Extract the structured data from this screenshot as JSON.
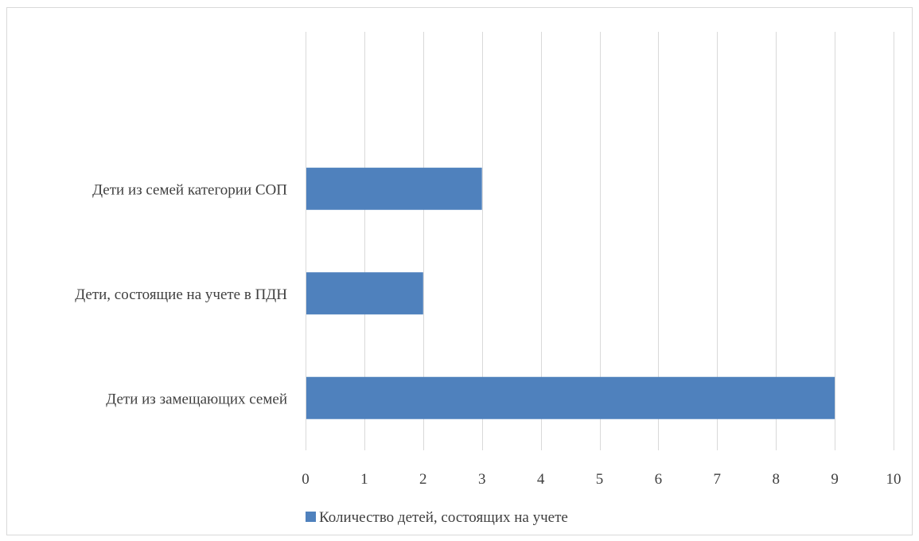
{
  "chart_data": {
    "type": "bar",
    "orientation": "horizontal",
    "categories": [
      "Дети из семей категории СОП",
      "Дети, состоящие на учете в ПДН",
      "Дети из замещающих семей"
    ],
    "series": [
      {
        "name": "Количество детей, состоящих на учете",
        "values": [
          3,
          2,
          9
        ],
        "color": "#4f81bd"
      }
    ],
    "xticks": [
      "0",
      "1",
      "2",
      "3",
      "4",
      "5",
      "6",
      "7",
      "8",
      "9",
      "10"
    ],
    "xlim": [
      0,
      10
    ],
    "grid": "vertical",
    "legend_position": "bottom-left"
  }
}
